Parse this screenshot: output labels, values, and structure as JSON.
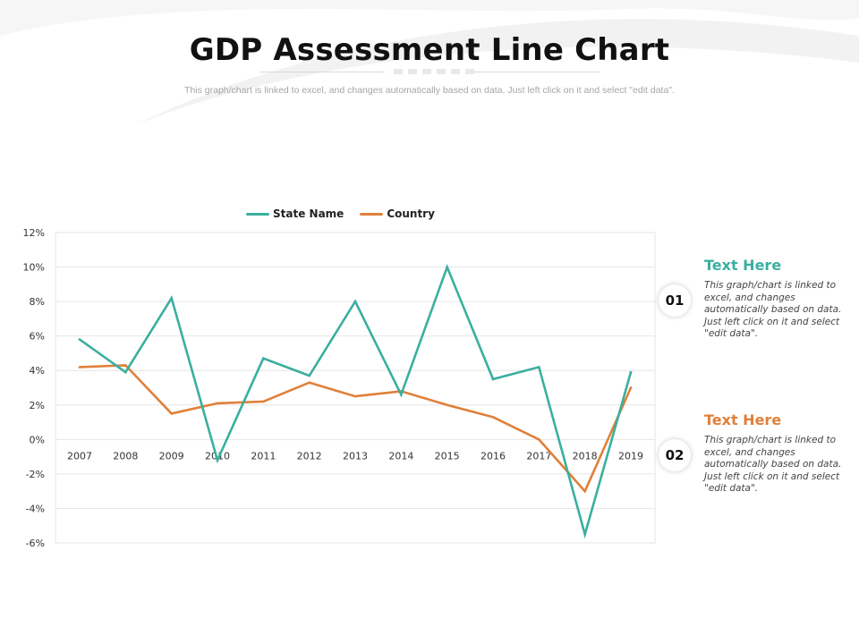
{
  "title": "GDP Assessment Line Chart",
  "subtitle": "This graph/chart is linked to excel, and changes automatically based on data. Just left click on it and select \"edit data\".",
  "colors": {
    "teal": "#3aafa0",
    "orange": "#e0803a",
    "grid": "#e6e6e6",
    "tick_text": "#333333"
  },
  "chart_data": {
    "type": "line",
    "x": [
      "2007",
      "2008",
      "2009",
      "2010",
      "2011",
      "2012",
      "2013",
      "2014",
      "2015",
      "2016",
      "2017",
      "2018",
      "2019"
    ],
    "series": [
      {
        "name": "State Name",
        "color": "#3aafa0",
        "values": [
          5.8,
          3.9,
          8.2,
          -1.2,
          4.7,
          3.7,
          8.0,
          2.6,
          10.0,
          3.5,
          4.2,
          -5.5,
          3.9
        ]
      },
      {
        "name": "Country",
        "color": "#e0803a",
        "values": [
          4.2,
          4.3,
          1.5,
          2.1,
          2.2,
          3.3,
          2.5,
          2.8,
          2.0,
          1.3,
          0.0,
          -3.0,
          3.0
        ]
      }
    ],
    "ylim": [
      -6,
      12
    ],
    "yticks": [
      12,
      10,
      8,
      6,
      4,
      2,
      0,
      -2,
      -4,
      -6
    ],
    "ytick_labels": [
      "12%",
      "10%",
      "8%",
      "6%",
      "4%",
      "2%",
      "0%",
      "-2%",
      "-4%",
      "-6%"
    ],
    "xlabel": "",
    "ylabel": "",
    "grid": true,
    "legend_position": "top-center"
  },
  "side_items": [
    {
      "number": "01",
      "heading": "Text Here",
      "color": "#3aafa0",
      "body": "This graph/chart is linked to excel, and changes automatically based on data. Just left click on it and select \"edit data\"."
    },
    {
      "number": "02",
      "heading": "Text Here",
      "color": "#e0803a",
      "body": "This graph/chart is linked to excel, and changes automatically based on data. Just left click on it and select \"edit data\"."
    }
  ]
}
